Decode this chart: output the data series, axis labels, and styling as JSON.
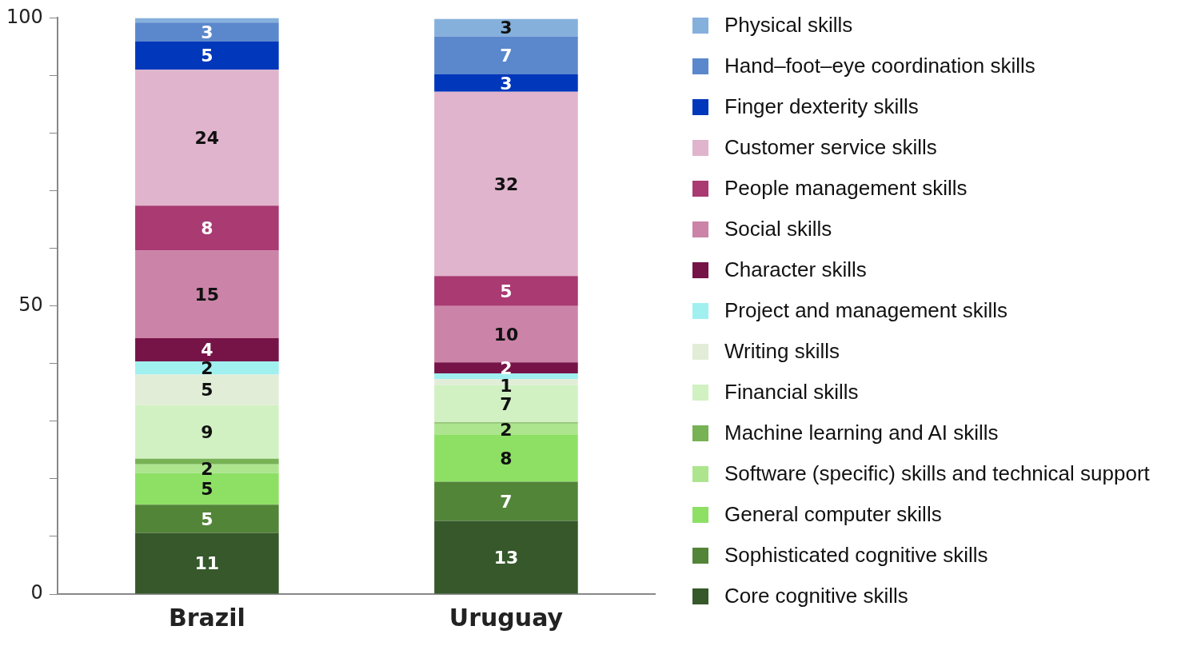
{
  "chart_data": {
    "type": "bar",
    "stacked": true,
    "categories": [
      "Brazil",
      "Uruguay"
    ],
    "ylim": [
      0,
      100
    ],
    "yticks": [
      0,
      {
        "value": 10,
        "label": null
      },
      {
        "value": 20,
        "label": null
      },
      {
        "value": 30,
        "label": null
      },
      {
        "value": 40,
        "label": null
      },
      50,
      {
        "value": 60,
        "label": null
      },
      {
        "value": 70,
        "label": null
      },
      {
        "value": 80,
        "label": null
      },
      {
        "value": 90,
        "label": null
      },
      100
    ],
    "grid": false,
    "legend": "right",
    "series": [
      {
        "name": "Core cognitive skills",
        "color": "#36582a",
        "values": [
          10.6,
          12.7
        ],
        "value_labels": [
          "11",
          "13"
        ]
      },
      {
        "name": "Sophisticated cognitive skills",
        "color": "#538539",
        "values": [
          4.9,
          6.8
        ],
        "value_labels": [
          "5",
          "7"
        ]
      },
      {
        "name": "General computer skills",
        "color": "#8ee065",
        "values": [
          5.5,
          8.1
        ],
        "value_labels": [
          "5",
          "8"
        ]
      },
      {
        "name": "Software (specific) skills and technical support",
        "color": "#ade58f",
        "values": [
          1.5,
          2.0
        ],
        "value_labels": [
          "2",
          "2"
        ]
      },
      {
        "name": "Machine learning and AI skills",
        "color": "#77b255",
        "values": [
          1.0,
          0.2
        ],
        "value_labels": [
          null,
          null
        ]
      },
      {
        "name": "Financial skills",
        "color": "#d1f1c3",
        "values": [
          9.3,
          6.5
        ],
        "value_labels": [
          "9",
          "7"
        ]
      },
      {
        "name": "Writing skills",
        "color": "#e2edd8",
        "values": [
          5.3,
          1.0
        ],
        "value_labels": [
          "5",
          null
        ]
      },
      {
        "name": "Project and management skills",
        "color": "#a0f0f0",
        "values": [
          2.3,
          1.0
        ],
        "value_labels": [
          "2",
          "1"
        ]
      },
      {
        "name": "Character skills",
        "color": "#761447",
        "values": [
          4.0,
          1.9
        ],
        "value_labels": [
          "4",
          "2"
        ]
      },
      {
        "name": "Social skills",
        "color": "#cb83a8",
        "values": [
          15.2,
          9.8
        ],
        "value_labels": [
          "15",
          "10"
        ]
      },
      {
        "name": "People management skills",
        "color": "#a93a72",
        "values": [
          7.8,
          5.2
        ],
        "value_labels": [
          "8",
          "5"
        ]
      },
      {
        "name": "Customer service skills",
        "color": "#e0b4cc",
        "values": [
          23.6,
          32.0
        ],
        "value_labels": [
          "24",
          "32"
        ]
      },
      {
        "name": "Finger dexterity skills",
        "color": "#0037bb",
        "values": [
          4.9,
          3.0
        ],
        "value_labels": [
          "5",
          "3"
        ]
      },
      {
        "name": "Hand–foot–eye coordination skills",
        "color": "#5b87cc",
        "values": [
          3.3,
          6.6
        ],
        "value_labels": [
          "3",
          "7"
        ]
      },
      {
        "name": "Physical skills",
        "color": "#85b0dc",
        "values": [
          0.8,
          3.0
        ],
        "value_labels": [
          null,
          "3"
        ]
      }
    ]
  }
}
